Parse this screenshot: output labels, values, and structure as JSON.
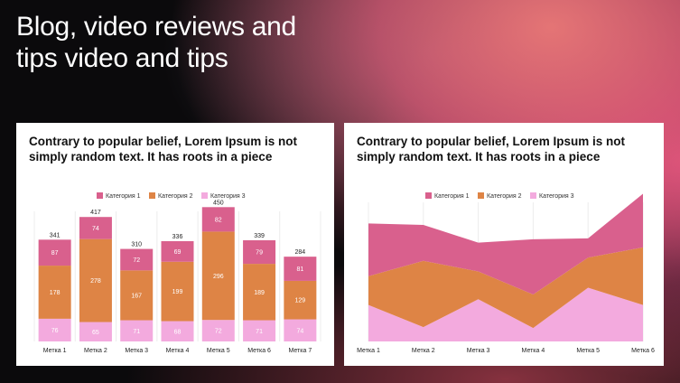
{
  "headline": "Blog, video reviews and tips video and tips",
  "colors": {
    "series1": "#d9608d",
    "series2": "#de8445",
    "series3": "#f3aade"
  },
  "chart_data": [
    {
      "type": "bar",
      "stacked": true,
      "title": "Contrary to popular belief, Lorem Ipsum is not simply random text. It has roots in a piece",
      "categories": [
        "Метка 1",
        "Метка 2",
        "Метка 3",
        "Метка 4",
        "Метка 5",
        "Метка 6",
        "Метка 7"
      ],
      "series": [
        {
          "name": "Категория 3",
          "values": [
            76,
            65,
            71,
            68,
            72,
            71,
            74
          ]
        },
        {
          "name": "Категория 2",
          "values": [
            178,
            278,
            167,
            199,
            296,
            189,
            129
          ]
        },
        {
          "name": "Категория 1",
          "values": [
            87,
            74,
            72,
            69,
            82,
            79,
            81
          ]
        }
      ],
      "totals": [
        341,
        417,
        310,
        336,
        450,
        339,
        284
      ],
      "legend": "top-center",
      "grid": true
    },
    {
      "type": "area",
      "stacked": true,
      "title": "Contrary to popular belief, Lorem Ipsum is not simply random text. It has roots in a piece",
      "categories": [
        "Метка 1",
        "Метка 2",
        "Метка 3",
        "Метка 4",
        "Метка 5",
        "Метка 6"
      ],
      "series": [
        {
          "name": "Категория 3",
          "values": [
            76,
            30,
            88,
            28,
            112,
            76
          ]
        },
        {
          "name": "Категория 2",
          "values": [
            60,
            138,
            58,
            70,
            63,
            120
          ]
        },
        {
          "name": "Категория 1",
          "values": [
            110,
            75,
            60,
            115,
            40,
            112
          ]
        }
      ],
      "legend": "top-center",
      "grid": true
    }
  ]
}
